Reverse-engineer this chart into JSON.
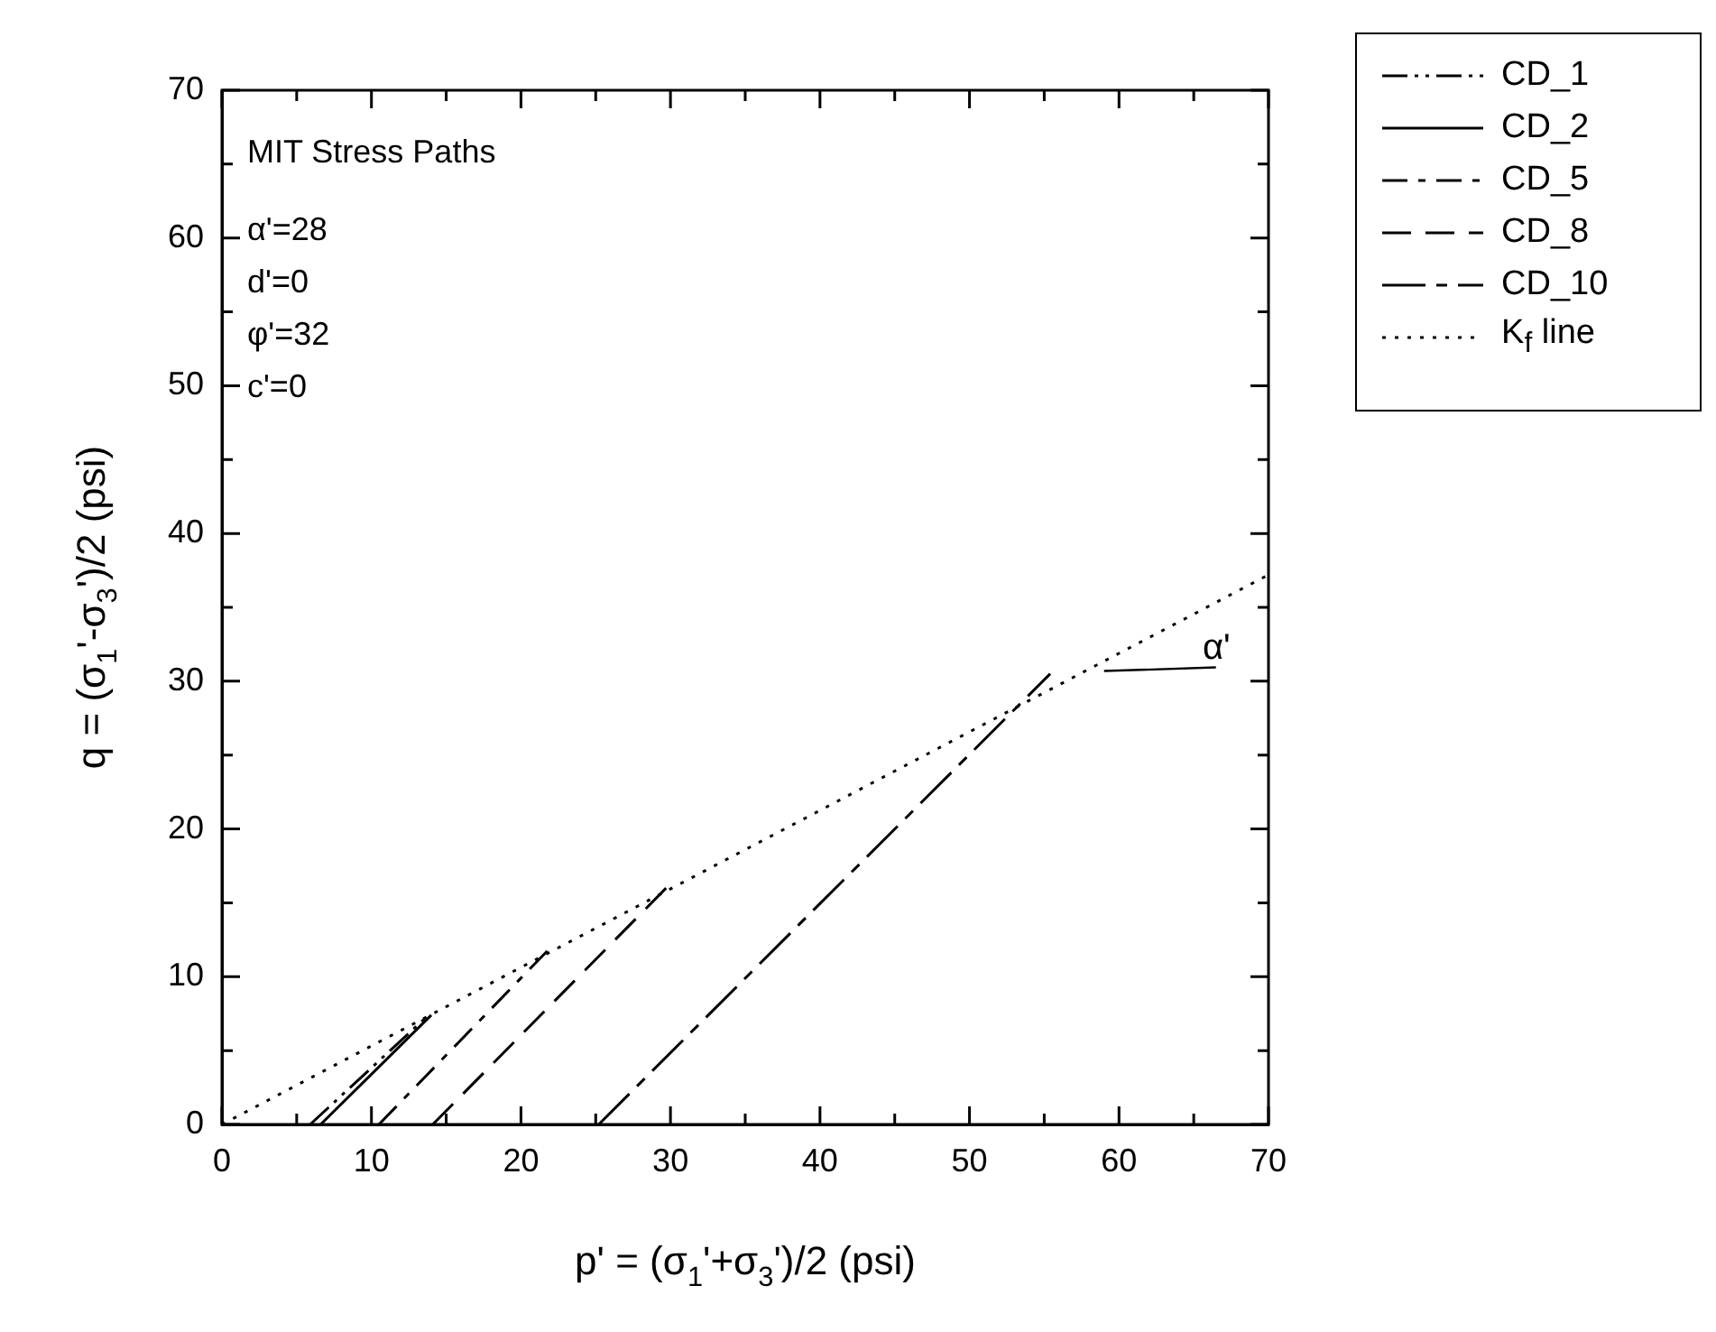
{
  "chart_data": {
    "type": "line",
    "xlabel": "p' = (σ$_{1}$'+σ$_{3}$')/2 (psi)",
    "ylabel": "q = (σ$_{1}$'-σ$_{3}$')/2 (psi)",
    "xlim": [
      0,
      70
    ],
    "ylim": [
      0,
      70
    ],
    "xticks": [
      0,
      {
        "value": 5,
        "label": null
      },
      10,
      {
        "value": 15,
        "label": null
      },
      20,
      {
        "value": 25,
        "label": null
      },
      30,
      {
        "value": 35,
        "label": null
      },
      40,
      {
        "value": 45,
        "label": null
      },
      50,
      {
        "value": 55,
        "label": null
      },
      60,
      {
        "value": 65,
        "label": null
      },
      70
    ],
    "yticks": [
      0,
      {
        "value": 5,
        "label": null
      },
      10,
      {
        "value": 15,
        "label": null
      },
      20,
      {
        "value": 25,
        "label": null
      },
      30,
      {
        "value": 35,
        "label": null
      },
      40,
      {
        "value": 45,
        "label": null
      },
      50,
      {
        "value": 55,
        "label": null
      },
      60,
      {
        "value": 65,
        "label": null
      },
      70
    ],
    "grid": false,
    "legend": "top right",
    "marker": "none",
    "series": [
      {
        "name": "CD_1",
        "color": "#000000",
        "line_style": "dashed",
        "x": [
          5.9,
          13.6
        ],
        "values": [
          0,
          7.2
        ]
      },
      {
        "name": "CD_2",
        "color": "#000000",
        "line_style": "solid",
        "x": [
          6.6,
          14.0
        ],
        "values": [
          0,
          7.4
        ]
      },
      {
        "name": "CD_5",
        "color": "#000000",
        "line_style": "dashed",
        "x": [
          10.5,
          22.2
        ],
        "values": [
          0,
          12.2
        ]
      },
      {
        "name": "CD_8",
        "color": "#000000",
        "line_style": "dashed",
        "x": [
          14.1,
          30.2
        ],
        "values": [
          0,
          16.5
        ]
      },
      {
        "name": "CD_10",
        "color": "#000000",
        "line_style": "dashed",
        "x": [
          25.2,
          55.4
        ],
        "values": [
          0,
          30.5
        ]
      },
      {
        "name": "K$_{f}$ line",
        "color": "#000000",
        "line_style": "dotted",
        "x": [
          0,
          70
        ],
        "values": [
          0,
          37.2
        ]
      }
    ],
    "annotations": [
      "MIT Stress Paths",
      "α'=28",
      "d'=0",
      "φ'=32",
      "c'=0",
      {
        "text": "α'",
        "x": 59,
        "y": 31.3
      }
    ]
  }
}
